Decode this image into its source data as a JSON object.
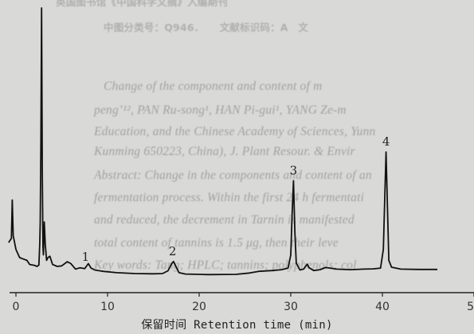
{
  "background_text": [
    "英国图书馆《中国科学文摘》入编期刊",
    "中图分类号：Q946．　　文献标识码：A　文",
    "Change of the component and content of m",
    "pengʼ¹², PAN Ru-song¹, HAN Pi-gui¹, YANG Ze-m",
    "Education, and the Chinese Academy of Sciences, Yunn",
    "Kunming 650223, China), J. Plant Resour. & Envir",
    "Abstract: Change in the components and content of an",
    "fermentation process. Within the first 24 h fermentati",
    "and reduced, the decrement in Tarnin is manifested",
    "total content of tannins is 1.5 μg, then their leve",
    "Key words: Tang; HPLC; tannins; polyphenols; col"
  ],
  "chart_data": {
    "type": "line",
    "xlabel": "保留时间 Retention time (min)",
    "ylabel": "",
    "xlim": [
      -1,
      50
    ],
    "ylim": [
      0,
      100
    ],
    "x_ticks": [
      0,
      10,
      20,
      30,
      40,
      50
    ],
    "x_tick_labels": [
      "0",
      "10",
      "20",
      "30",
      "40",
      "50"
    ],
    "grid": false,
    "series": [
      {
        "points": [
          [
            -0.8,
            14.5
          ],
          [
            -0.5,
            16
          ],
          [
            -0.4,
            30
          ],
          [
            -0.3,
            17
          ],
          [
            0,
            12
          ],
          [
            0.4,
            9
          ],
          [
            0.8,
            8.5
          ],
          [
            1.2,
            8
          ],
          [
            1.5,
            6.5
          ],
          [
            2.0,
            6.2
          ],
          [
            2.3,
            5.8
          ],
          [
            2.5,
            6.3
          ],
          [
            2.6,
            14
          ],
          [
            2.65,
            22
          ],
          [
            2.72,
            50
          ],
          [
            2.8,
            100
          ],
          [
            2.88,
            40
          ],
          [
            2.95,
            13
          ],
          [
            3.0,
            10
          ],
          [
            3.1,
            22
          ],
          [
            3.2,
            14
          ],
          [
            3.35,
            8
          ],
          [
            3.5,
            9
          ],
          [
            3.7,
            9.5
          ],
          [
            4.0,
            6.5
          ],
          [
            4.5,
            5.8
          ],
          [
            5.0,
            6
          ],
          [
            5.6,
            7.5
          ],
          [
            6.0,
            6.8
          ],
          [
            6.5,
            4.8
          ],
          [
            7.0,
            5.3
          ],
          [
            7.5,
            5
          ],
          [
            7.9,
            6.8
          ],
          [
            8.2,
            5.2
          ],
          [
            8.6,
            4.5
          ],
          [
            9.5,
            4
          ],
          [
            11,
            3.5
          ],
          [
            13,
            3.2
          ],
          [
            15,
            3.1
          ],
          [
            16,
            3.2
          ],
          [
            16.6,
            4.2
          ],
          [
            17,
            6.8
          ],
          [
            17.2,
            7.6
          ],
          [
            17.5,
            5.5
          ],
          [
            17.8,
            3.5
          ],
          [
            18.5,
            3
          ],
          [
            21,
            2.8
          ],
          [
            24,
            2.9
          ],
          [
            25.5,
            3.4
          ],
          [
            26.5,
            4
          ],
          [
            28,
            4.3
          ],
          [
            29,
            4.6
          ],
          [
            29.7,
            5.2
          ],
          [
            30.0,
            10
          ],
          [
            30.15,
            25
          ],
          [
            30.3,
            37
          ],
          [
            30.45,
            18
          ],
          [
            30.6,
            7
          ],
          [
            31.0,
            4.5
          ],
          [
            31.4,
            4.8
          ],
          [
            31.8,
            6.6
          ],
          [
            32.0,
            5.3
          ],
          [
            32.5,
            4.3
          ],
          [
            33.2,
            4.6
          ],
          [
            33.8,
            5.4
          ],
          [
            34.3,
            5.2
          ],
          [
            35,
            4.8
          ],
          [
            36.5,
            4.6
          ],
          [
            38,
            4.8
          ],
          [
            39,
            4.9
          ],
          [
            39.8,
            5.2
          ],
          [
            40.1,
            12
          ],
          [
            40.25,
            30
          ],
          [
            40.4,
            47.5
          ],
          [
            40.55,
            28
          ],
          [
            40.7,
            8
          ],
          [
            41,
            5.5
          ],
          [
            42,
            4.8
          ],
          [
            44,
            4.7
          ],
          [
            46,
            4.7
          ]
        ]
      }
    ],
    "peak_labels": [
      {
        "label": "1",
        "x": 7.6,
        "y": 5.5
      },
      {
        "label": "2",
        "x": 17.1,
        "y": 7.6
      },
      {
        "label": "3",
        "x": 30.3,
        "y": 37
      },
      {
        "label": "4",
        "x": 40.4,
        "y": 47.5
      }
    ]
  }
}
